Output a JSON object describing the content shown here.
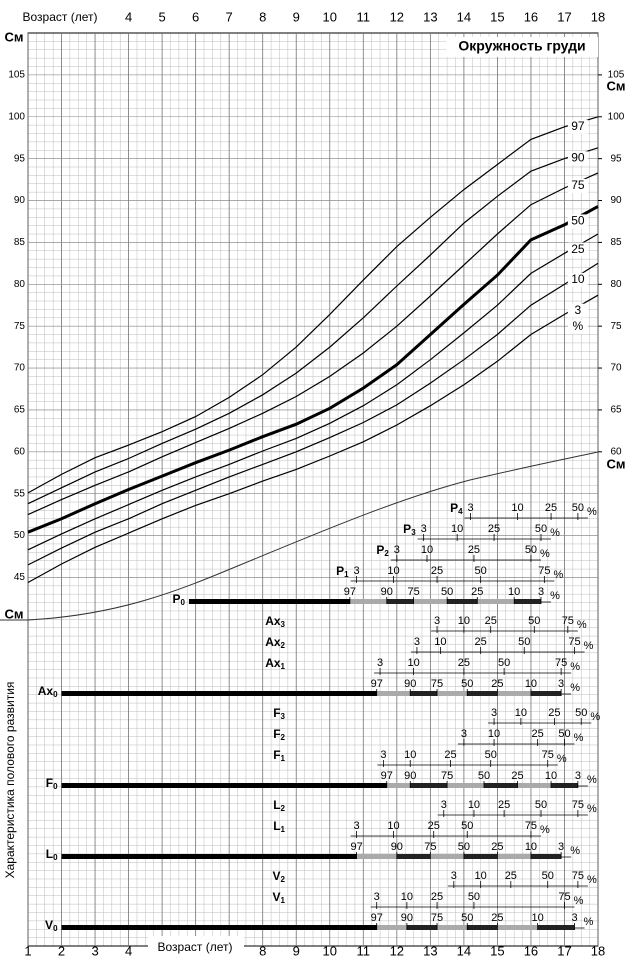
{
  "chart_data": {
    "type": "line",
    "title": "Окружность груди",
    "x_label": "Возраст (лет)",
    "y_label": "Характеристика полового развития",
    "unit": "См",
    "percent_sign": "%",
    "xlim": [
      1,
      18
    ],
    "xticks": [
      1,
      2,
      3,
      4,
      5,
      6,
      7,
      8,
      9,
      10,
      11,
      12,
      13,
      14,
      15,
      16,
      17,
      18
    ],
    "top_axis_ticks": [
      4,
      5,
      6,
      7,
      8,
      9,
      10,
      11,
      12,
      13,
      14,
      15,
      16,
      17,
      18
    ],
    "bottom_axis_ticks": [
      1,
      2,
      3,
      4,
      8,
      9,
      10,
      11,
      12,
      13,
      14,
      15,
      16,
      17,
      18
    ],
    "x": [
      1,
      2,
      3,
      4,
      5,
      6,
      7,
      8,
      9,
      10,
      11,
      12,
      13,
      14,
      15,
      16,
      17,
      18
    ],
    "ylim": [
      1,
      110
    ],
    "yticks": [
      45,
      50,
      55,
      60,
      65,
      70,
      75,
      80,
      85,
      90,
      95,
      100,
      105
    ],
    "y2lim": [
      1,
      110
    ],
    "y2ticks": [
      60,
      65,
      70,
      75,
      80,
      85,
      90,
      95,
      100,
      105
    ],
    "grid": true,
    "series": [
      {
        "name": "97",
        "color": "#000000",
        "values": [
          55.1,
          57.3,
          59.3,
          60.8,
          62.4,
          64.2,
          66.5,
          69.2,
          72.5,
          76.4,
          80.5,
          84.5,
          88,
          91.3,
          94.3,
          97.3,
          98.8,
          100
        ]
      },
      {
        "name": "90",
        "color": "#000000",
        "values": [
          53.8,
          55.7,
          57.6,
          59.2,
          61,
          62.7,
          64.6,
          66.8,
          69.4,
          72.5,
          76,
          79.8,
          83.5,
          87.3,
          90.5,
          93.5,
          95,
          96.3
        ]
      },
      {
        "name": "75",
        "color": "#000000",
        "values": [
          52.5,
          54.3,
          56,
          57.6,
          59.4,
          61.1,
          62.8,
          64.6,
          66.6,
          69,
          71.8,
          75,
          78.6,
          82.3,
          86,
          89.5,
          91.5,
          93.3
        ]
      },
      {
        "name": "50",
        "color": "#000000",
        "values": [
          50.4,
          52,
          53.8,
          55.5,
          57.1,
          58.7,
          60.2,
          61.8,
          63.3,
          65.2,
          67.6,
          70.4,
          74,
          77.6,
          81.1,
          85.3,
          87.1,
          89.3
        ]
      },
      {
        "name": "25",
        "color": "#000000",
        "values": [
          48.3,
          50.2,
          52,
          53.7,
          55.4,
          57,
          58.5,
          60.1,
          61.6,
          63.4,
          65.5,
          68,
          71,
          74.2,
          77.5,
          81.3,
          83.7,
          86
        ]
      },
      {
        "name": "10",
        "color": "#000000",
        "values": [
          46.5,
          48.5,
          50.4,
          52,
          53.8,
          55.4,
          57,
          58.5,
          60,
          61.7,
          63.5,
          65.6,
          68.2,
          71,
          74,
          77.5,
          80,
          82.5
        ]
      },
      {
        "name": "3",
        "color": "#000000",
        "values": [
          44.4,
          46.6,
          48.6,
          50.3,
          52,
          53.6,
          55,
          56.5,
          57.9,
          59.5,
          61.2,
          63.2,
          65.5,
          68,
          70.8,
          74,
          76.4,
          78.7
        ]
      }
    ],
    "development": [
      {
        "rows": [
          {
            "stage": "P",
            "sub": "4",
            "percentiles": [
              3,
              10,
              25,
              50
            ],
            "ages": [
              14.2,
              15.6,
              16.6,
              17.4
            ]
          },
          {
            "stage": "P",
            "sub": "3",
            "percentiles": [
              3,
              10,
              25,
              50
            ],
            "ages": [
              12.8,
              13.8,
              14.9,
              16.3
            ]
          },
          {
            "stage": "P",
            "sub": "2",
            "percentiles": [
              3,
              10,
              25,
              50
            ],
            "ages": [
              12.0,
              12.9,
              14.3,
              16.0
            ]
          },
          {
            "stage": "P",
            "sub": "1",
            "percentiles": [
              3,
              10,
              25,
              50,
              75
            ],
            "ages": [
              10.8,
              11.9,
              13.2,
              14.5,
              16.4
            ]
          },
          {
            "stage": "P",
            "sub": "0",
            "bar_start": 5.8,
            "percentiles": [
              97,
              90,
              75,
              50,
              25,
              10,
              3
            ],
            "ages": [
              10.6,
              11.7,
              12.5,
              13.5,
              14.4,
              15.5,
              16.3
            ]
          }
        ]
      },
      {
        "rows": [
          {
            "stage": "Ax",
            "sub": "3",
            "percentiles": [
              3,
              10,
              25,
              50,
              75
            ],
            "ages": [
              13.2,
              14.0,
              14.8,
              16.1,
              17.1
            ]
          },
          {
            "stage": "Ax",
            "sub": "2",
            "percentiles": [
              3,
              10,
              25,
              50,
              75
            ],
            "ages": [
              12.6,
              13.3,
              14.5,
              15.8,
              17.3
            ]
          },
          {
            "stage": "Ax",
            "sub": "1",
            "percentiles": [
              3,
              10,
              25,
              50,
              75
            ],
            "ages": [
              11.5,
              12.5,
              14.0,
              15.2,
              16.9
            ]
          },
          {
            "stage": "Ax",
            "sub": "0",
            "bar_start": 2,
            "percentiles": [
              97,
              90,
              75,
              50,
              25,
              10,
              3
            ],
            "ages": [
              11.4,
              12.4,
              13.2,
              14.1,
              15.0,
              16.0,
              16.9
            ]
          }
        ]
      },
      {
        "rows": [
          {
            "stage": "F",
            "sub": "3",
            "percentiles": [
              3,
              10,
              25,
              50
            ],
            "ages": [
              14.9,
              15.7,
              16.7,
              17.5
            ]
          },
          {
            "stage": "F",
            "sub": "2",
            "percentiles": [
              3,
              10,
              25,
              50
            ],
            "ages": [
              14.0,
              14.9,
              16.2,
              17.0
            ]
          },
          {
            "stage": "F",
            "sub": "1",
            "percentiles": [
              3,
              10,
              25,
              50,
              75
            ],
            "ages": [
              11.6,
              12.4,
              13.6,
              14.8,
              16.5
            ]
          },
          {
            "stage": "F",
            "sub": "0",
            "bar_start": 2,
            "percentiles": [
              97,
              90,
              75,
              50,
              25,
              10,
              3
            ],
            "ages": [
              11.7,
              12.4,
              13.5,
              14.6,
              15.6,
              16.6,
              17.4
            ]
          }
        ]
      },
      {
        "rows": [
          {
            "stage": "L",
            "sub": "2",
            "percentiles": [
              3,
              10,
              25,
              50,
              75
            ],
            "ages": [
              13.4,
              14.3,
              15.2,
              16.3,
              17.4
            ]
          },
          {
            "stage": "L",
            "sub": "1",
            "percentiles": [
              3,
              10,
              25,
              50,
              75
            ],
            "ages": [
              10.8,
              11.9,
              13.1,
              14.1,
              16.0
            ]
          },
          {
            "stage": "L",
            "sub": "0",
            "bar_start": 2,
            "percentiles": [
              97,
              90,
              75,
              50,
              25,
              10,
              3
            ],
            "ages": [
              10.8,
              12.0,
              13.0,
              14.0,
              15.0,
              16.0,
              16.9
            ]
          }
        ]
      },
      {
        "rows": [
          {
            "stage": "V",
            "sub": "2",
            "percentiles": [
              3,
              10,
              25,
              50,
              75
            ],
            "ages": [
              13.7,
              14.5,
              15.4,
              16.5,
              17.4
            ]
          },
          {
            "stage": "V",
            "sub": "1",
            "percentiles": [
              3,
              10,
              25,
              50,
              75
            ],
            "ages": [
              11.4,
              12.3,
              13.2,
              14.3,
              17.0
            ]
          },
          {
            "stage": "V",
            "sub": "0",
            "bar_start": 2,
            "percentiles": [
              97,
              90,
              75,
              50,
              25,
              10,
              3
            ],
            "ages": [
              11.4,
              12.3,
              13.2,
              14.1,
              15.0,
              16.2,
              17.3
            ]
          }
        ]
      }
    ]
  }
}
